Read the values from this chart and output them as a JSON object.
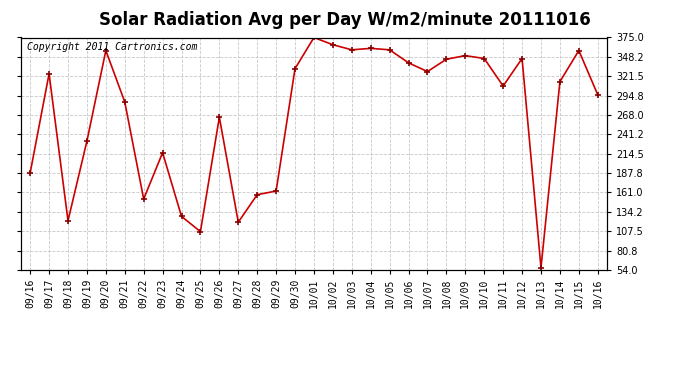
{
  "title": "Solar Radiation Avg per Day W/m2/minute 20111016",
  "copyright": "Copyright 2011 Cartronics.com",
  "labels": [
    "09/16",
    "09/17",
    "09/18",
    "09/19",
    "09/20",
    "09/21",
    "09/22",
    "09/23",
    "09/24",
    "09/25",
    "09/26",
    "09/27",
    "09/28",
    "09/29",
    "09/30",
    "10/01",
    "10/02",
    "10/03",
    "10/04",
    "10/05",
    "10/06",
    "10/07",
    "10/08",
    "10/09",
    "10/10",
    "10/11",
    "10/12",
    "10/13",
    "10/14",
    "10/15",
    "10/16"
  ],
  "values": [
    188,
    325,
    122,
    232,
    357,
    286,
    152,
    216,
    128,
    107,
    265,
    120,
    158,
    163,
    332,
    375,
    365,
    358,
    360,
    358,
    340,
    328,
    345,
    350,
    346,
    308,
    346,
    57,
    314,
    357,
    296
  ],
  "line_color": "#cc0000",
  "marker_color": "#880000",
  "background_color": "#ffffff",
  "plot_background": "#ffffff",
  "grid_color": "#c8c8c8",
  "title_fontsize": 12,
  "copyright_fontsize": 7,
  "tick_fontsize": 7,
  "ylim": [
    54.0,
    375.0
  ],
  "yticks": [
    54.0,
    80.8,
    107.5,
    134.2,
    161.0,
    187.8,
    214.5,
    241.2,
    268.0,
    294.8,
    321.5,
    348.2,
    375.0
  ]
}
